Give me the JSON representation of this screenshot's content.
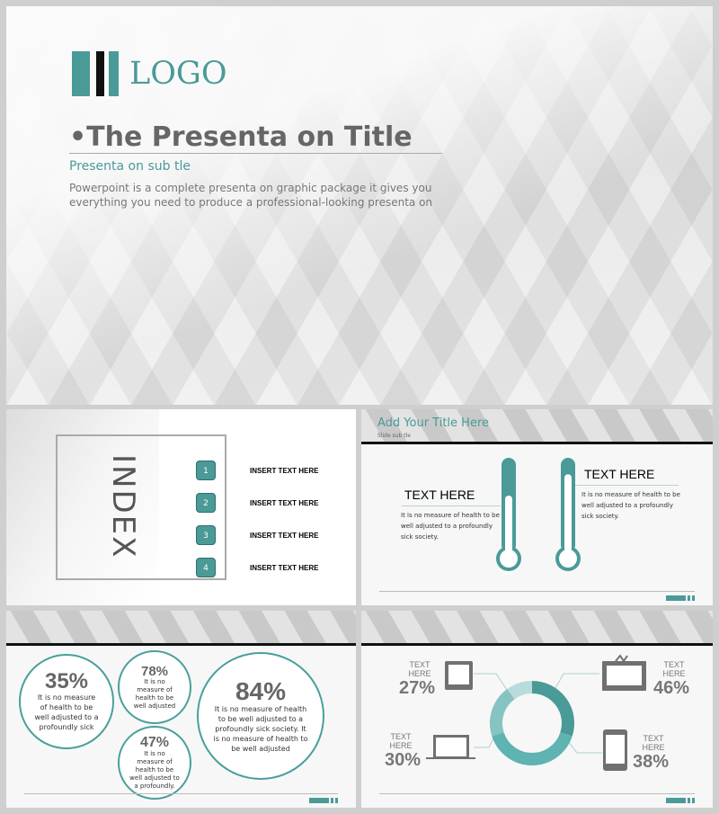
{
  "title_slide": {
    "logo": "LOGO",
    "title": "•The Presenta  on Title",
    "subtitle": "Presenta  on sub   tle",
    "body_line1": "Powerpoint is a complete presenta  on graphic package it gives you",
    "body_line2": "everything you need to produce a professional-looking presenta  on"
  },
  "index_slide": {
    "heading": "INDEX",
    "items": [
      {
        "num": "1",
        "label": "INSERT TEXT HERE"
      },
      {
        "num": "2",
        "label": "INSERT TEXT HERE"
      },
      {
        "num": "3",
        "label": "INSERT TEXT HERE"
      },
      {
        "num": "4",
        "label": "INSERT TEXT HERE"
      }
    ]
  },
  "thermo_slide": {
    "title": "Add Your Title Here",
    "subtitle": "Slide sub    tle",
    "left": {
      "heading": "TEXT HERE",
      "body": "It is no measure of health to be well adjusted to a profoundly sick society.",
      "level": 0.6
    },
    "right": {
      "heading": "TEXT HERE",
      "body": "It is no measure of health to be well adjusted to a profoundly sick society.",
      "level": 0.85
    }
  },
  "bubble_slide": {
    "bubbles": [
      {
        "pct": "35%",
        "text": "It is no measure of health to be well adjusted to a profoundly sick"
      },
      {
        "pct": "78%",
        "text": "It is no measure of health to be well adjusted"
      },
      {
        "pct": "47%",
        "text": "It is no measure of health to be well adjusted to a profoundly."
      },
      {
        "pct": "84%",
        "text": "It is no measure of health to be well adjusted to a profoundly sick society. It is no measure of health to be well adjusted"
      }
    ]
  },
  "donut_slide": {
    "items": [
      {
        "label": "TEXT HERE",
        "pct": "27%",
        "icon": "tablet-icon"
      },
      {
        "label": "TEXT HERE",
        "pct": "46%",
        "icon": "tv-icon"
      },
      {
        "label": "TEXT HERE",
        "pct": "30%",
        "icon": "laptop-icon"
      },
      {
        "label": "TEXT HERE",
        "pct": "38%",
        "icon": "phone-icon"
      }
    ],
    "segments": [
      {
        "fraction": 0.3,
        "color": "#4a9a98"
      },
      {
        "fraction": 0.4,
        "color": "#5fb3b1"
      },
      {
        "fraction": 0.2,
        "color": "#86c4c2"
      },
      {
        "fraction": 0.1,
        "color": "#b7dcdb"
      }
    ]
  },
  "colors": {
    "accent": "#4a9a98",
    "text_gray": "#666666"
  }
}
